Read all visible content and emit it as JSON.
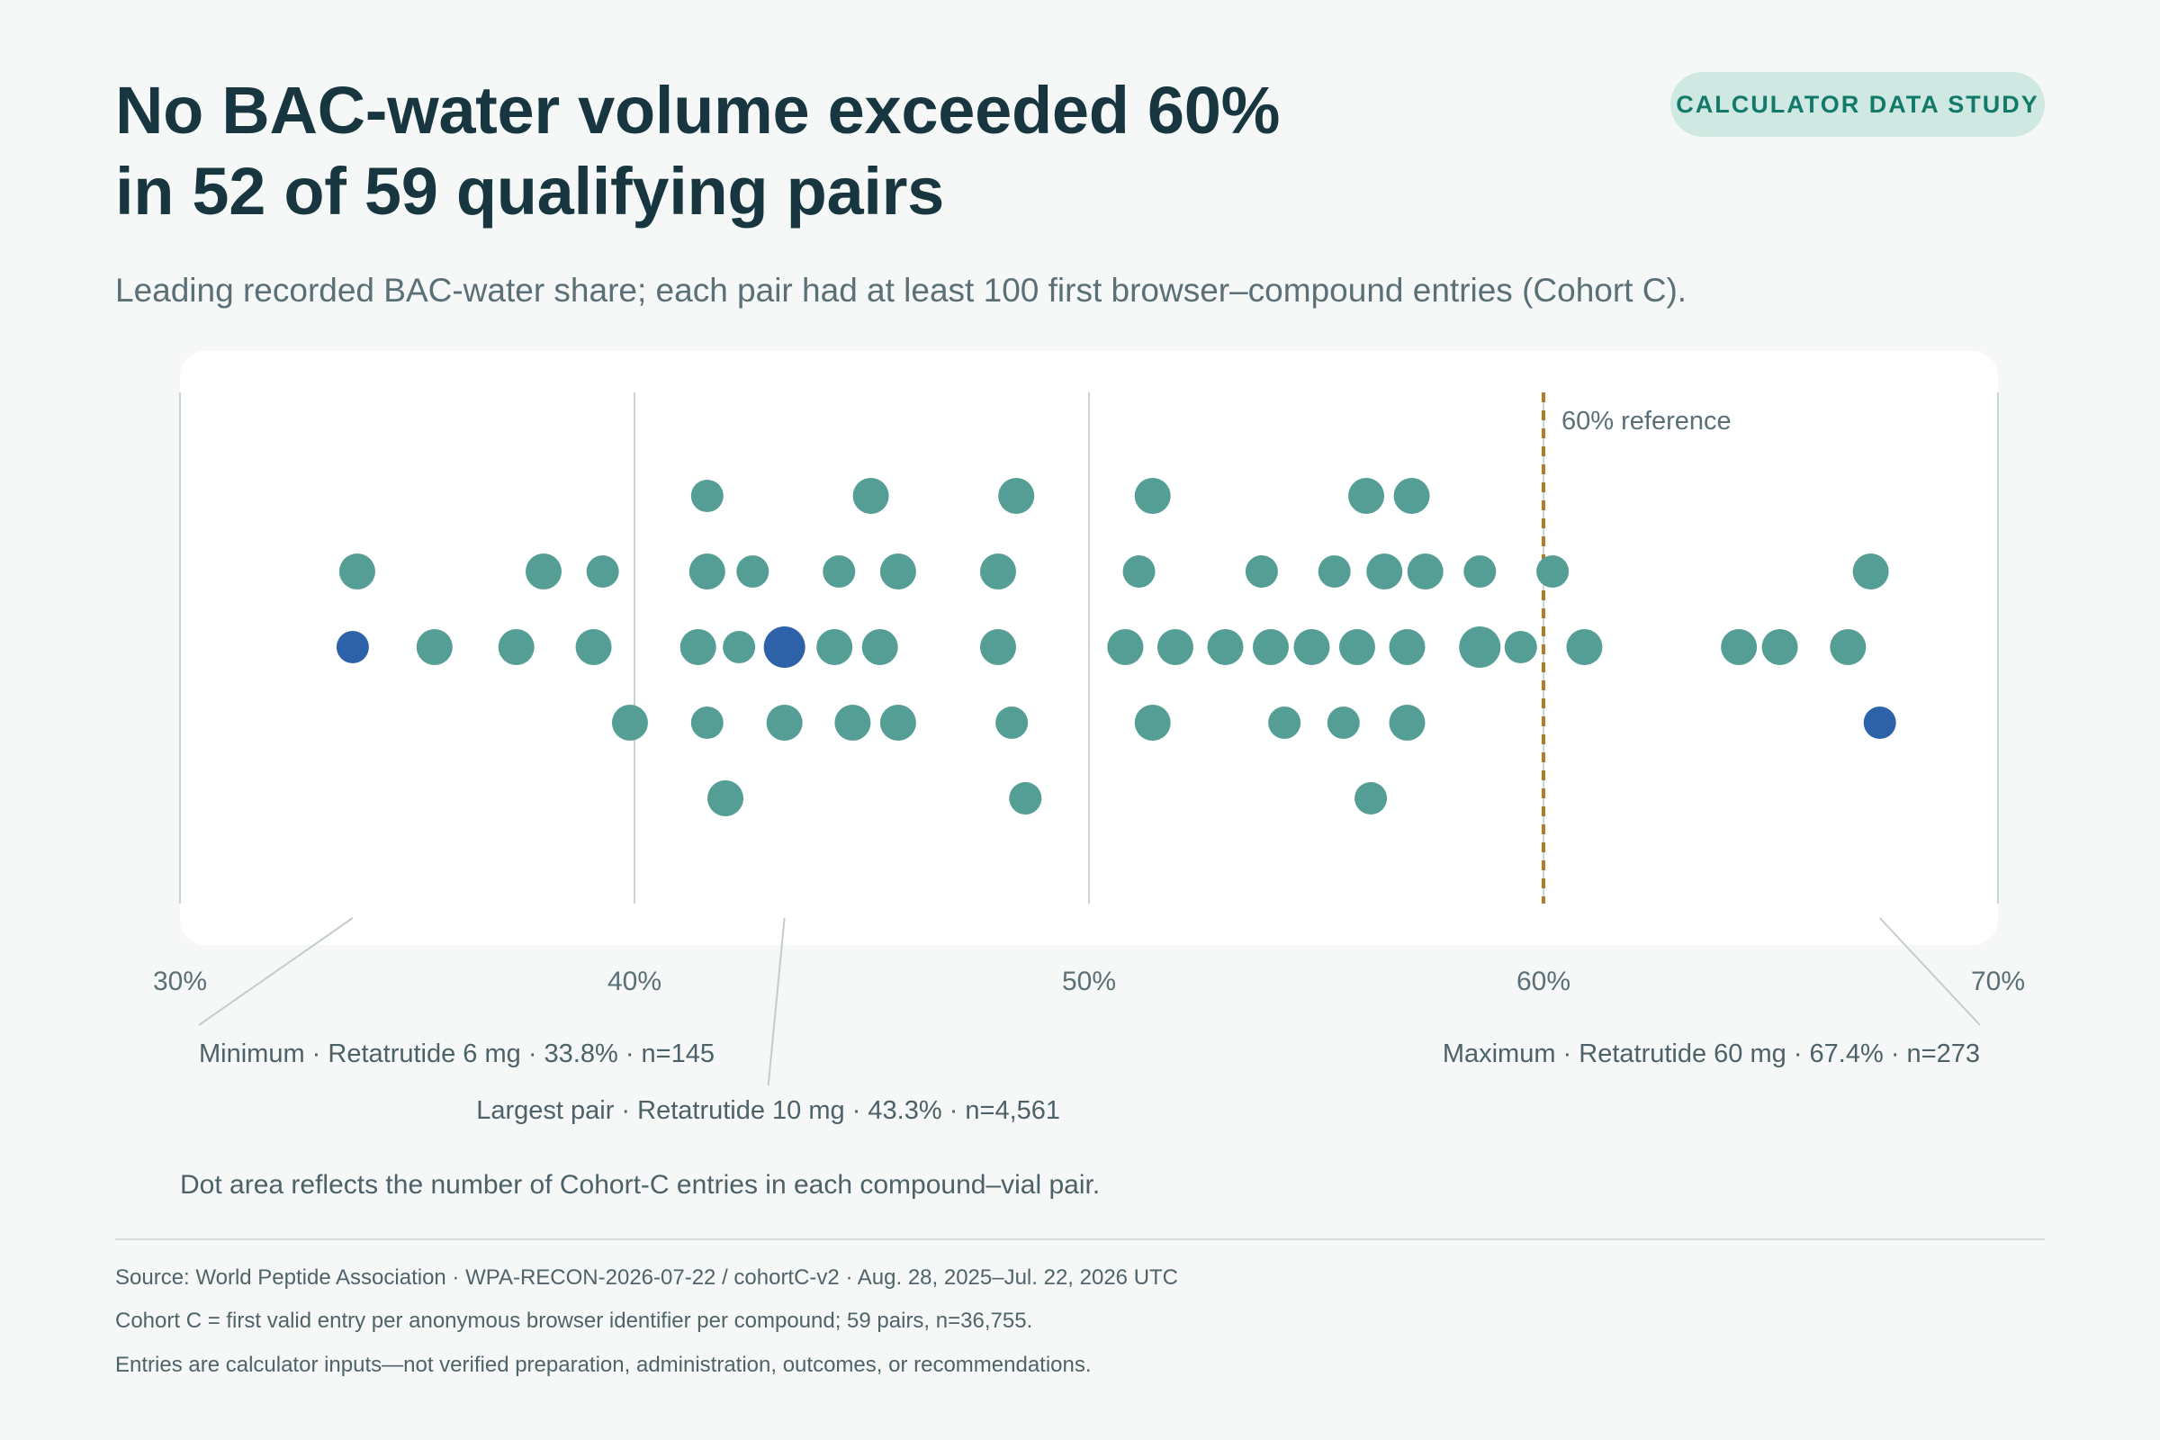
{
  "title_lines": [
    "No BAC-water volume exceeded 60%",
    "in 52 of 59 qualifying pairs"
  ],
  "badge": "CALCULATOR DATA STUDY",
  "subtitle": "Leading recorded BAC-water share; each pair had at least 100 first browser–compound entries (Cohort C).",
  "note": "Dot area reflects the number of Cohort-C entries in each compound–vial pair.",
  "footer": [
    "Source: World Peptide Association · WPA-RECON-2026-07-22 / cohortC-v2 · Aug. 28, 2025–Jul. 22, 2026 UTC",
    "Cohort C = first valid entry per anonymous browser identifier per compound; 59 pairs, n=36,755.",
    "Entries are calculator inputs—not verified preparation, administration, outcomes, or recommendations."
  ],
  "colors": {
    "dot": "#559e96",
    "highlight": "#2d62a8",
    "reference": "#b17c26",
    "grid": "#c9d5d2",
    "panel": "#ffffff"
  },
  "chart_data": {
    "type": "scatter",
    "layout": "beeswarm",
    "xlim": [
      30,
      70
    ],
    "x_ticks": [
      30,
      40,
      50,
      60,
      70
    ],
    "x_tick_labels": [
      "30%",
      "40%",
      "50%",
      "60%",
      "70%"
    ],
    "reference": {
      "value": 60,
      "label": "60% reference"
    },
    "points": [
      {
        "x": 41.6,
        "level": 2,
        "size": "s"
      },
      {
        "x": 45.2,
        "level": 2,
        "size": "m"
      },
      {
        "x": 48.4,
        "level": 2,
        "size": "m"
      },
      {
        "x": 51.4,
        "level": 2,
        "size": "m"
      },
      {
        "x": 56.1,
        "level": 2,
        "size": "m"
      },
      {
        "x": 57.1,
        "level": 2,
        "size": "m"
      },
      {
        "x": 33.9,
        "level": 1,
        "size": "m"
      },
      {
        "x": 38.0,
        "level": 1,
        "size": "m"
      },
      {
        "x": 39.3,
        "level": 1,
        "size": "s"
      },
      {
        "x": 41.6,
        "level": 1,
        "size": "m"
      },
      {
        "x": 42.6,
        "level": 1,
        "size": "s"
      },
      {
        "x": 44.5,
        "level": 1,
        "size": "s"
      },
      {
        "x": 45.8,
        "level": 1,
        "size": "m"
      },
      {
        "x": 48.0,
        "level": 1,
        "size": "m"
      },
      {
        "x": 51.1,
        "level": 1,
        "size": "s"
      },
      {
        "x": 53.8,
        "level": 1,
        "size": "s"
      },
      {
        "x": 55.4,
        "level": 1,
        "size": "s"
      },
      {
        "x": 56.5,
        "level": 1,
        "size": "m"
      },
      {
        "x": 57.4,
        "level": 1,
        "size": "m"
      },
      {
        "x": 58.6,
        "level": 1,
        "size": "s"
      },
      {
        "x": 60.2,
        "level": 1,
        "size": "s"
      },
      {
        "x": 67.2,
        "level": 1,
        "size": "m"
      },
      {
        "x": 33.8,
        "level": 0,
        "size": "s",
        "highlight": true
      },
      {
        "x": 35.6,
        "level": 0,
        "size": "m"
      },
      {
        "x": 37.4,
        "level": 0,
        "size": "m"
      },
      {
        "x": 39.1,
        "level": 0,
        "size": "m"
      },
      {
        "x": 41.4,
        "level": 0,
        "size": "m"
      },
      {
        "x": 42.3,
        "level": 0,
        "size": "s"
      },
      {
        "x": 43.3,
        "level": 0,
        "size": "l",
        "highlight": true
      },
      {
        "x": 44.4,
        "level": 0,
        "size": "m"
      },
      {
        "x": 45.4,
        "level": 0,
        "size": "m"
      },
      {
        "x": 48.0,
        "level": 0,
        "size": "m"
      },
      {
        "x": 50.8,
        "level": 0,
        "size": "m"
      },
      {
        "x": 51.9,
        "level": 0,
        "size": "m"
      },
      {
        "x": 53.0,
        "level": 0,
        "size": "m"
      },
      {
        "x": 54.0,
        "level": 0,
        "size": "m"
      },
      {
        "x": 54.9,
        "level": 0,
        "size": "m"
      },
      {
        "x": 55.9,
        "level": 0,
        "size": "m"
      },
      {
        "x": 57.0,
        "level": 0,
        "size": "m"
      },
      {
        "x": 58.6,
        "level": 0,
        "size": "l"
      },
      {
        "x": 59.5,
        "level": 0,
        "size": "s"
      },
      {
        "x": 60.9,
        "level": 0,
        "size": "m"
      },
      {
        "x": 64.3,
        "level": 0,
        "size": "m"
      },
      {
        "x": 65.2,
        "level": 0,
        "size": "m"
      },
      {
        "x": 66.7,
        "level": 0,
        "size": "m"
      },
      {
        "x": 39.9,
        "level": -1,
        "size": "m"
      },
      {
        "x": 41.6,
        "level": -1,
        "size": "s"
      },
      {
        "x": 43.3,
        "level": -1,
        "size": "m"
      },
      {
        "x": 44.8,
        "level": -1,
        "size": "m"
      },
      {
        "x": 45.8,
        "level": -1,
        "size": "m"
      },
      {
        "x": 48.3,
        "level": -1,
        "size": "s"
      },
      {
        "x": 51.4,
        "level": -1,
        "size": "m"
      },
      {
        "x": 54.3,
        "level": -1,
        "size": "s"
      },
      {
        "x": 55.6,
        "level": -1,
        "size": "s"
      },
      {
        "x": 57.0,
        "level": -1,
        "size": "m"
      },
      {
        "x": 67.4,
        "level": -1,
        "size": "s",
        "highlight": true
      },
      {
        "x": 42.0,
        "level": -2,
        "size": "m"
      },
      {
        "x": 48.6,
        "level": -2,
        "size": "s"
      },
      {
        "x": 56.2,
        "level": -2,
        "size": "s"
      }
    ],
    "annotations": [
      {
        "x": 33.8,
        "anchor": "start",
        "row": 1,
        "text": "Minimum · Retatrutide 6 mg · 33.8% · n=145"
      },
      {
        "x": 43.3,
        "anchor": "middle",
        "row": 2,
        "text": "Largest pair · Retatrutide 10 mg · 43.3% · n=4,561"
      },
      {
        "x": 67.4,
        "anchor": "end",
        "row": 1,
        "text": "Maximum · Retatrutide 60 mg · 67.4% · n=273"
      }
    ]
  }
}
